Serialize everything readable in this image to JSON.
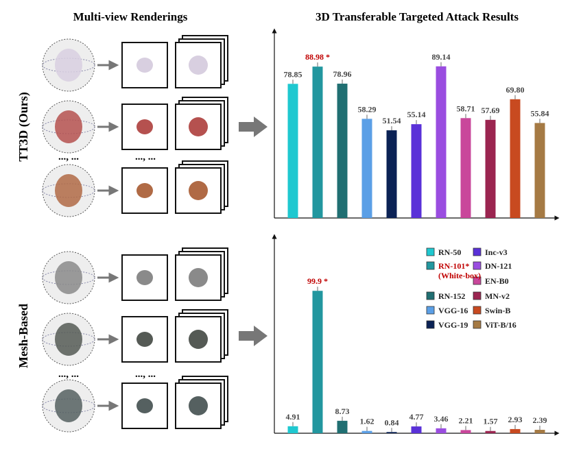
{
  "titles": {
    "left": "Multi-view Renderings",
    "right": "3D Transferable Targeted Attack Results"
  },
  "row_labels": [
    "TT3D (Ours)",
    "Mesh-Based"
  ],
  "dots": "..., ...",
  "highlight": {
    "index": 1,
    "color": "#c00000"
  },
  "legend": {
    "names": [
      "RN-50",
      "RN-101*\n(White-box)",
      "RN-152",
      "VGG-16",
      "VGG-19",
      "Inc-v3",
      "DN-121",
      "EN-B0",
      "MN-v2",
      "Swin-B",
      "ViT-B/16"
    ],
    "colors": [
      "#1fc8d0",
      "#22979f",
      "#206f72",
      "#5b9fe6",
      "#0b2255",
      "#5a31d8",
      "#9a4de0",
      "#c9479b",
      "#9b2550",
      "#c84a20",
      "#a57a44"
    ]
  },
  "chart_data": [
    {
      "type": "bar",
      "ylim": [
        0,
        110
      ],
      "values": [
        78.85,
        88.98,
        78.96,
        58.29,
        51.54,
        55.14,
        89.14,
        58.71,
        57.69,
        69.8,
        55.84
      ],
      "value_labels": [
        "78.85",
        "88.98 *",
        "78.96",
        "58.29",
        "51.54",
        "55.14",
        "89.14",
        "58.71",
        "57.69",
        "69.80",
        "55.84"
      ]
    },
    {
      "type": "bar",
      "ylim": [
        0,
        138
      ],
      "values": [
        4.91,
        99.9,
        8.73,
        1.62,
        0.84,
        4.77,
        3.46,
        2.21,
        1.57,
        2.93,
        2.39
      ],
      "value_labels": [
        "4.91",
        "99.9 *",
        "8.73",
        "1.62",
        "0.84",
        "4.77",
        "3.46",
        "2.21",
        "1.57",
        "2.93",
        "2.39"
      ]
    }
  ]
}
